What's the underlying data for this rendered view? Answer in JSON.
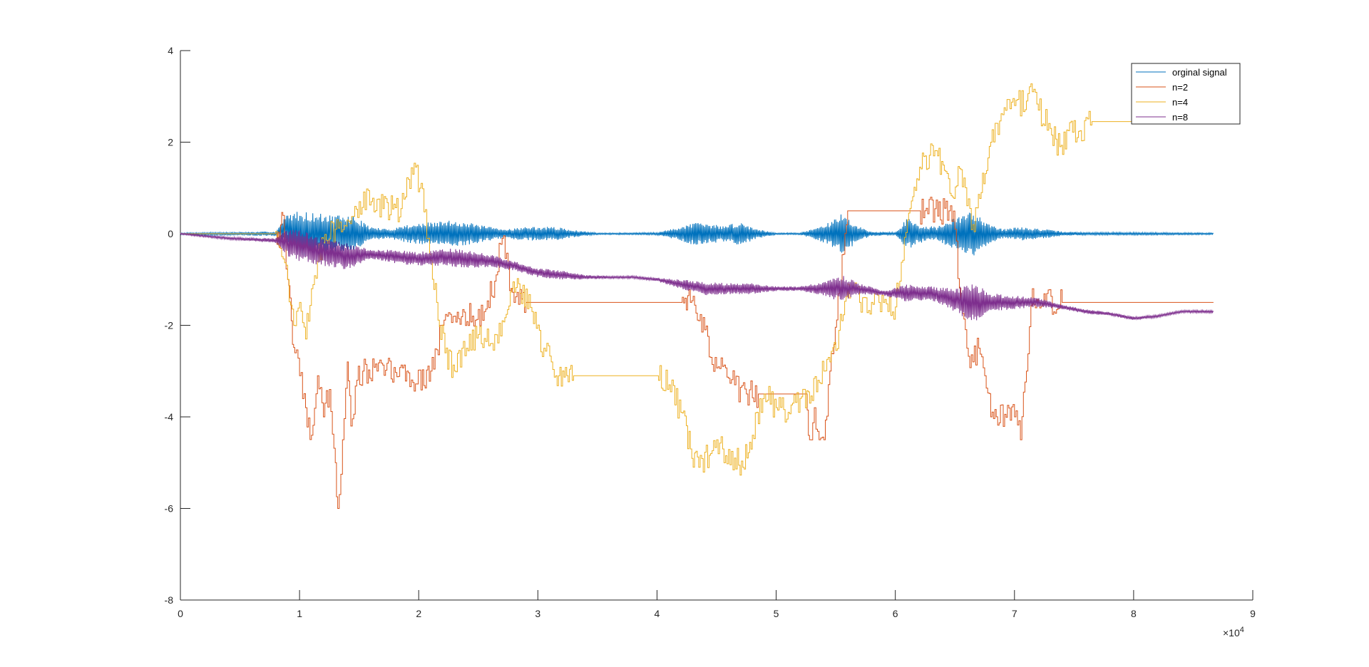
{
  "chart_data": {
    "type": "line",
    "title": "",
    "xlabel": "",
    "ylabel": "",
    "x_exponent_label": "×10",
    "x_exponent_power": "4",
    "xlim": [
      0,
      90000
    ],
    "ylim": [
      -8,
      4
    ],
    "xticks": [
      0,
      10000,
      20000,
      30000,
      40000,
      50000,
      60000,
      70000,
      80000,
      90000
    ],
    "xtick_labels": [
      "0",
      "1",
      "2",
      "3",
      "4",
      "5",
      "6",
      "7",
      "8",
      "9"
    ],
    "yticks": [
      -8,
      -6,
      -4,
      -2,
      0,
      2,
      4
    ],
    "ytick_labels": [
      "-8",
      "-6",
      "-4",
      "-2",
      "0",
      "2",
      "4"
    ],
    "grid": false,
    "legend_placement": "top-right",
    "series": [
      {
        "name": "orginal signal",
        "color": "#0072BD",
        "style": "dense-oscillation",
        "envelope": [
          [
            0,
            0,
            0.02
          ],
          [
            8000,
            0,
            0.05
          ],
          [
            9000,
            0.1,
            0.35
          ],
          [
            10000,
            0,
            0.5
          ],
          [
            11500,
            0,
            0.45
          ],
          [
            13000,
            0,
            0.4
          ],
          [
            14500,
            0,
            0.4
          ],
          [
            16000,
            0,
            0.15
          ],
          [
            17500,
            0,
            0.1
          ],
          [
            19000,
            0,
            0.2
          ],
          [
            21000,
            0,
            0.25
          ],
          [
            23000,
            0,
            0.3
          ],
          [
            25000,
            0,
            0.2
          ],
          [
            27000,
            0,
            0.1
          ],
          [
            29000,
            0,
            0.15
          ],
          [
            31500,
            0,
            0.15
          ],
          [
            33000,
            0,
            0.08
          ],
          [
            35000,
            0,
            0.02
          ],
          [
            38000,
            0,
            0.02
          ],
          [
            40000,
            0,
            0.03
          ],
          [
            41500,
            0,
            0.12
          ],
          [
            43000,
            0,
            0.25
          ],
          [
            44000,
            0,
            0.22
          ],
          [
            45500,
            0,
            0.18
          ],
          [
            47000,
            0,
            0.25
          ],
          [
            48500,
            0,
            0.1
          ],
          [
            50000,
            0,
            0.02
          ],
          [
            52000,
            0,
            0.02
          ],
          [
            53000,
            0,
            0.1
          ],
          [
            54500,
            0,
            0.25
          ],
          [
            55500,
            0,
            0.45
          ],
          [
            57000,
            0,
            0.15
          ],
          [
            58000,
            0,
            0.05
          ],
          [
            60000,
            0,
            0.03
          ],
          [
            61000,
            0,
            0.35
          ],
          [
            62000,
            0,
            0.2
          ],
          [
            63500,
            0,
            0.15
          ],
          [
            65000,
            0,
            0.35
          ],
          [
            66500,
            0,
            0.5
          ],
          [
            67500,
            0,
            0.3
          ],
          [
            69000,
            0,
            0.1
          ],
          [
            70500,
            0,
            0.15
          ],
          [
            72500,
            0,
            0.1
          ],
          [
            74000,
            0,
            0.05
          ],
          [
            76000,
            0,
            0.03
          ],
          [
            80000,
            0,
            0.03
          ],
          [
            86700,
            0,
            0.02
          ]
        ]
      },
      {
        "name": "n=2",
        "color": "#D95319",
        "style": "step",
        "points": [
          [
            0,
            0
          ],
          [
            8000,
            0
          ],
          [
            8300,
            -0.3
          ],
          [
            8600,
            0.4
          ],
          [
            9000,
            -1
          ],
          [
            9300,
            -1.9
          ],
          [
            9600,
            -2.6
          ],
          [
            10000,
            -3.1
          ],
          [
            10500,
            -3.8
          ],
          [
            11000,
            -4.4
          ],
          [
            11500,
            -3.1
          ],
          [
            12000,
            -4.0
          ],
          [
            12500,
            -3.4
          ],
          [
            13000,
            -5.0
          ],
          [
            13200,
            -6.0
          ],
          [
            13600,
            -4.5
          ],
          [
            14000,
            -2.8
          ],
          [
            14300,
            -4.2
          ],
          [
            14800,
            -3.2
          ],
          [
            15300,
            -3.0
          ],
          [
            16500,
            -3.0
          ],
          [
            19000,
            -3.0
          ],
          [
            19500,
            -3.25
          ],
          [
            21000,
            -3.0
          ],
          [
            22000,
            -2.0
          ],
          [
            23000,
            -1.8
          ],
          [
            24500,
            -1.8
          ],
          [
            25500,
            -1.7
          ],
          [
            26500,
            -0.9
          ],
          [
            27000,
            -0.1
          ],
          [
            28000,
            -1.5
          ],
          [
            29000,
            -1.5
          ],
          [
            32000,
            -1.5
          ],
          [
            35000,
            -1.5
          ],
          [
            38000,
            -1.5
          ],
          [
            42000,
            -1.5
          ],
          [
            42800,
            -1.5
          ],
          [
            43500,
            -1.9
          ],
          [
            44000,
            -2.1
          ],
          [
            44500,
            -2.7
          ],
          [
            45500,
            -2.9
          ],
          [
            46500,
            -3.3
          ],
          [
            47500,
            -3.5
          ],
          [
            48500,
            -3.5
          ],
          [
            52500,
            -3.5
          ],
          [
            52800,
            -4.5
          ],
          [
            53200,
            -3.8
          ],
          [
            53600,
            -4.5
          ],
          [
            54000,
            -4.5
          ],
          [
            54500,
            -3.0
          ],
          [
            55300,
            -1.2
          ],
          [
            56000,
            0.5
          ],
          [
            59000,
            0.5
          ],
          [
            62000,
            0.5
          ],
          [
            64500,
            0.5
          ],
          [
            65000,
            0.1
          ],
          [
            65500,
            -1.5
          ],
          [
            66000,
            -2.5
          ],
          [
            66500,
            -2.8
          ],
          [
            67000,
            -2.5
          ],
          [
            67500,
            -3.1
          ],
          [
            68000,
            -4.0
          ],
          [
            70000,
            -4.0
          ],
          [
            70500,
            -4.5
          ],
          [
            71000,
            -3.0
          ],
          [
            71500,
            -1.2
          ],
          [
            72000,
            -1.5
          ],
          [
            74000,
            -1.5
          ],
          [
            80000,
            -1.5
          ],
          [
            86700,
            -1.5
          ]
        ]
      },
      {
        "name": "n=4",
        "color": "#EDB120",
        "style": "step",
        "points": [
          [
            0,
            0
          ],
          [
            4000,
            0
          ],
          [
            8000,
            0.05
          ],
          [
            8500,
            -0.5
          ],
          [
            9000,
            -1.0
          ],
          [
            9500,
            -2.0
          ],
          [
            10000,
            -1.5
          ],
          [
            10500,
            -2.3
          ],
          [
            11000,
            -1.2
          ],
          [
            11500,
            -0.6
          ],
          [
            12000,
            -0.2
          ],
          [
            13000,
            0.1
          ],
          [
            14000,
            0.3
          ],
          [
            15000,
            0.7
          ],
          [
            16000,
            0.7
          ],
          [
            17000,
            0.55
          ],
          [
            18500,
            0.55
          ],
          [
            19500,
            1.3
          ],
          [
            20200,
            1.1
          ],
          [
            20800,
            -0.1
          ],
          [
            21500,
            -1.5
          ],
          [
            22200,
            -2.6
          ],
          [
            23000,
            -3.0
          ],
          [
            24000,
            -2.5
          ],
          [
            25000,
            -2.2
          ],
          [
            26000,
            -2.4
          ],
          [
            27000,
            -1.9
          ],
          [
            27800,
            -1.2
          ],
          [
            28500,
            -1.3
          ],
          [
            29500,
            -1.7
          ],
          [
            30500,
            -2.5
          ],
          [
            31500,
            -3.1
          ],
          [
            33000,
            -3.1
          ],
          [
            36000,
            -3.1
          ],
          [
            40000,
            -3.1
          ],
          [
            41000,
            -3.3
          ],
          [
            42000,
            -3.9
          ],
          [
            42800,
            -4.7
          ],
          [
            43500,
            -5.1
          ],
          [
            44500,
            -4.8
          ],
          [
            45500,
            -4.7
          ],
          [
            46500,
            -4.9
          ],
          [
            47200,
            -5.1
          ],
          [
            48000,
            -4.4
          ],
          [
            49000,
            -3.5
          ],
          [
            50000,
            -3.8
          ],
          [
            51000,
            -3.9
          ],
          [
            52000,
            -3.6
          ],
          [
            52800,
            -3.7
          ],
          [
            53500,
            -3.2
          ],
          [
            54500,
            -2.8
          ],
          [
            55500,
            -1.9
          ],
          [
            56000,
            -1.1
          ],
          [
            57000,
            -1.5
          ],
          [
            58000,
            -1.5
          ],
          [
            59000,
            -1.5
          ],
          [
            60000,
            -1.6
          ],
          [
            61000,
            0.3
          ],
          [
            61800,
            1.2
          ],
          [
            62500,
            1.7
          ],
          [
            63200,
            1.7
          ],
          [
            64000,
            1.5
          ],
          [
            64800,
            0.8
          ],
          [
            65500,
            1.4
          ],
          [
            66500,
            0.2
          ],
          [
            67200,
            0.9
          ],
          [
            68000,
            2.0
          ],
          [
            69000,
            2.6
          ],
          [
            70000,
            2.8
          ],
          [
            71000,
            2.9
          ],
          [
            71500,
            3.1
          ],
          [
            72000,
            2.7
          ],
          [
            73000,
            2.3
          ],
          [
            73800,
            1.9
          ],
          [
            74500,
            2.25
          ],
          [
            75500,
            2.25
          ],
          [
            76500,
            2.45
          ],
          [
            80000,
            2.45
          ]
        ]
      },
      {
        "name": "n=8",
        "color": "#7E2F8E",
        "style": "dense-oscillation",
        "envelope": [
          [
            0,
            0,
            0.02
          ],
          [
            4000,
            -0.1,
            0.03
          ],
          [
            8000,
            -0.15,
            0.05
          ],
          [
            9000,
            -0.2,
            0.3
          ],
          [
            10000,
            -0.25,
            0.35
          ],
          [
            12000,
            -0.4,
            0.3
          ],
          [
            14000,
            -0.5,
            0.3
          ],
          [
            16000,
            -0.45,
            0.1
          ],
          [
            18000,
            -0.5,
            0.15
          ],
          [
            20000,
            -0.55,
            0.15
          ],
          [
            22000,
            -0.5,
            0.2
          ],
          [
            24000,
            -0.55,
            0.2
          ],
          [
            26000,
            -0.6,
            0.15
          ],
          [
            28000,
            -0.7,
            0.1
          ],
          [
            30000,
            -0.85,
            0.1
          ],
          [
            32000,
            -0.9,
            0.1
          ],
          [
            34000,
            -0.95,
            0.05
          ],
          [
            36000,
            -0.95,
            0.03
          ],
          [
            38000,
            -0.95,
            0.03
          ],
          [
            40000,
            -1.0,
            0.04
          ],
          [
            42000,
            -1.1,
            0.1
          ],
          [
            44000,
            -1.2,
            0.15
          ],
          [
            46000,
            -1.2,
            0.12
          ],
          [
            48000,
            -1.2,
            0.12
          ],
          [
            50000,
            -1.2,
            0.05
          ],
          [
            52000,
            -1.2,
            0.05
          ],
          [
            54000,
            -1.2,
            0.15
          ],
          [
            55500,
            -1.2,
            0.3
          ],
          [
            57000,
            -1.2,
            0.12
          ],
          [
            59000,
            -1.3,
            0.05
          ],
          [
            61000,
            -1.3,
            0.2
          ],
          [
            63000,
            -1.3,
            0.15
          ],
          [
            65000,
            -1.45,
            0.25
          ],
          [
            66500,
            -1.5,
            0.45
          ],
          [
            68000,
            -1.5,
            0.2
          ],
          [
            70000,
            -1.5,
            0.15
          ],
          [
            72000,
            -1.5,
            0.1
          ],
          [
            74000,
            -1.6,
            0.05
          ],
          [
            76000,
            -1.7,
            0.05
          ],
          [
            78000,
            -1.75,
            0.04
          ],
          [
            80000,
            -1.85,
            0.04
          ],
          [
            82000,
            -1.8,
            0.03
          ],
          [
            84000,
            -1.7,
            0.03
          ],
          [
            86700,
            -1.7,
            0.03
          ]
        ]
      }
    ]
  }
}
